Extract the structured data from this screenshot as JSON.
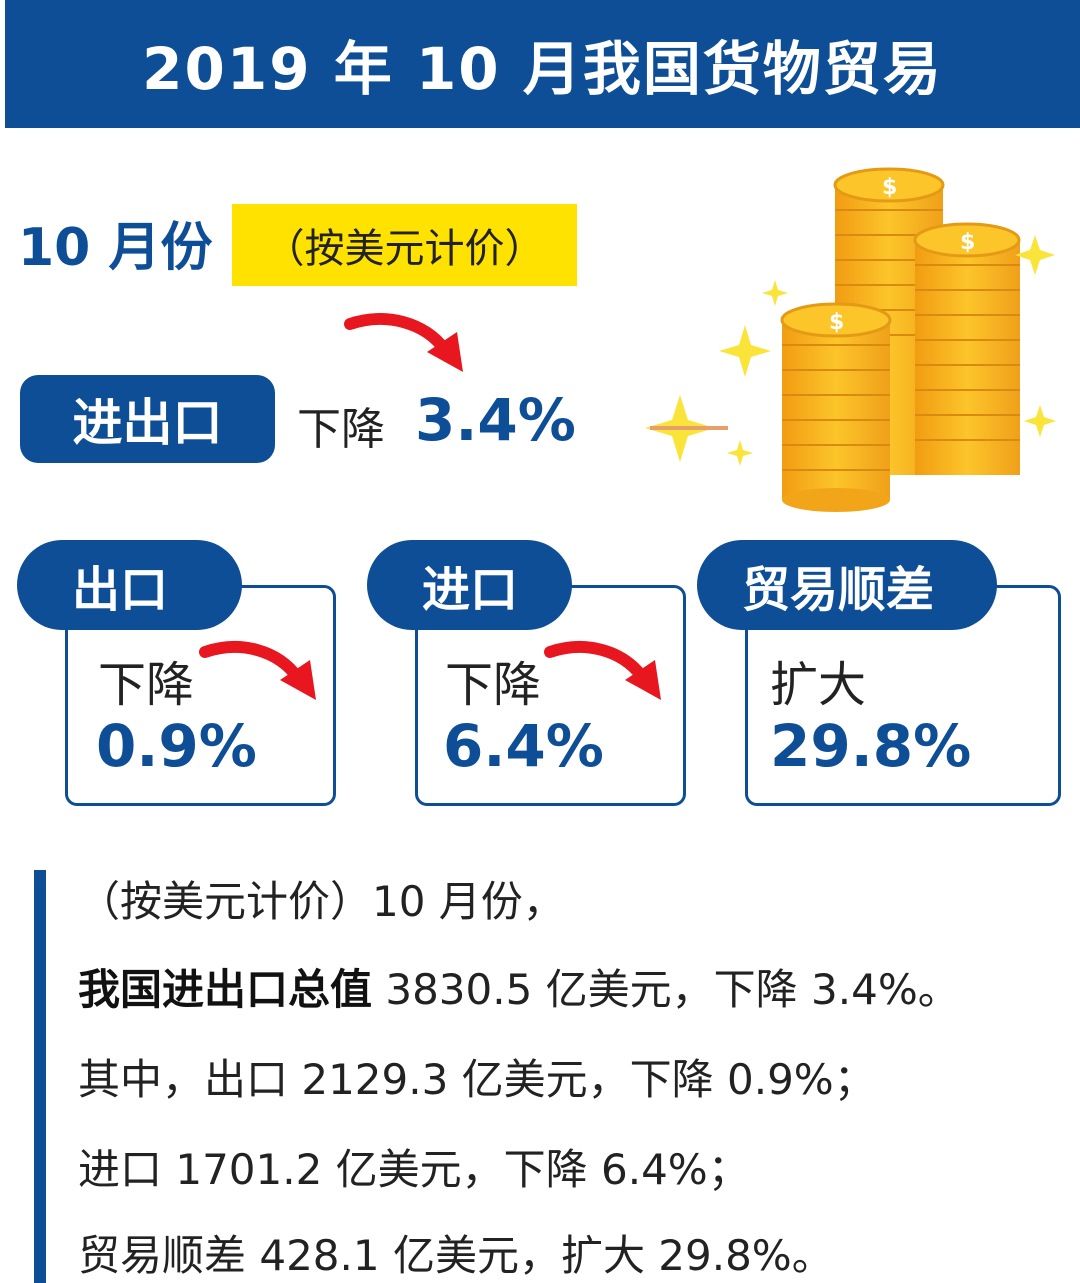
{
  "header": {
    "title": "2019 年 10 月我国货物贸易"
  },
  "month": {
    "label": "10 月份",
    "unit": "（按美元计价）"
  },
  "total": {
    "label": "进出口",
    "change_label": "下降",
    "change_value": "3.4%"
  },
  "cards": [
    {
      "label": "出口",
      "change_label": "下降",
      "change_value": "0.9%"
    },
    {
      "label": "进口",
      "change_label": "下降",
      "change_value": "6.4%"
    },
    {
      "label": "贸易顺差",
      "change_label": "扩大",
      "change_value": "29.8%"
    }
  ],
  "details": {
    "line1": "（按美元计价）10 月份，",
    "line2_bold": "我国进出口总值",
    "line2_rest": " 3830.5 亿美元，下降 3.4%。",
    "line3": "其中，出口 2129.3 亿美元，下降 0.9%；",
    "line4": "进口 1701.2 亿美元，下降 6.4%；",
    "line5": "贸易顺差 428.1 亿美元，扩大 29.8%。"
  },
  "colors": {
    "primary": "#0d4e96",
    "highlight": "#ffe200",
    "arrow": "#e8171f",
    "coin": "#f6b51d"
  },
  "icons": [
    "coin-stack-icon",
    "sparkle-icon",
    "down-arrow-icon"
  ]
}
